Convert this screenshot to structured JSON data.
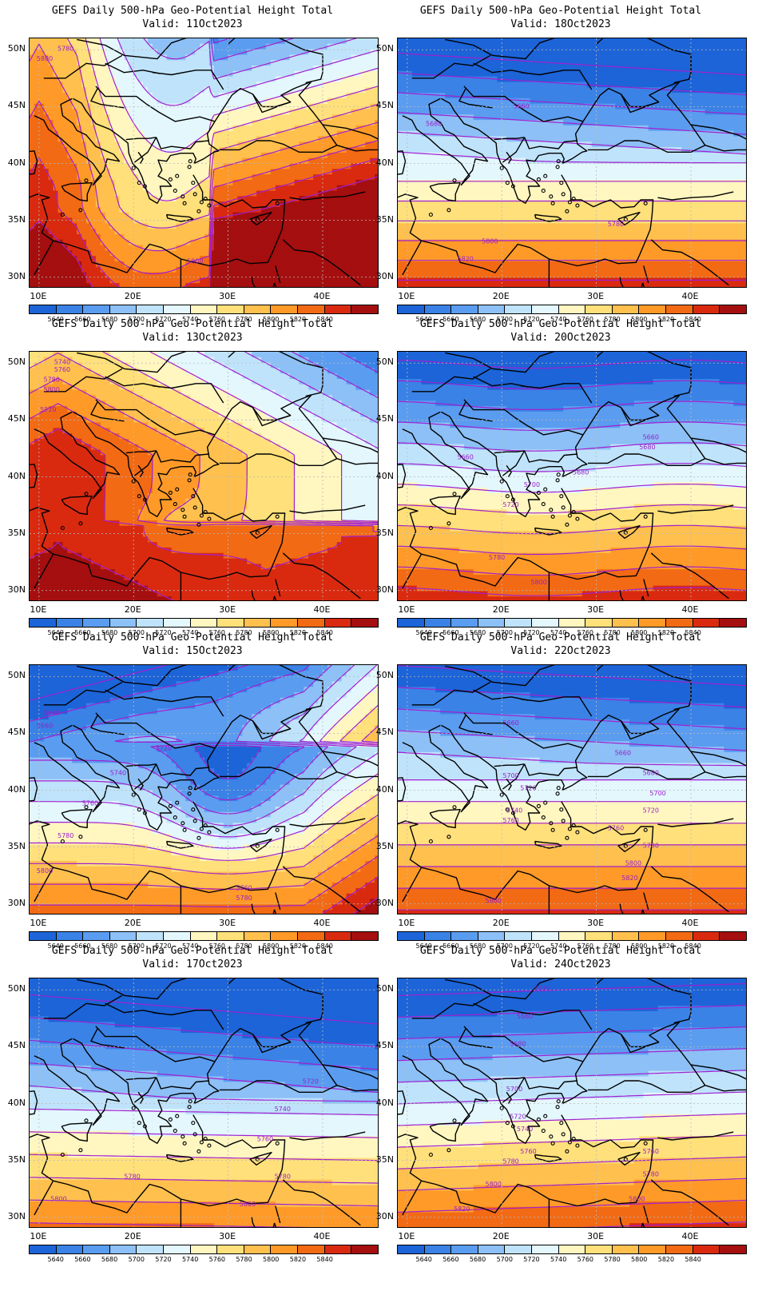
{
  "panels": [
    {
      "title": "GEFS Daily 500-hPa Geo-Potential Height Total",
      "valid": "Valid:  11Oct2023",
      "pattern": "ridge_west"
    },
    {
      "title": "GEFS Daily 500-hPa Geo-Potential Height Total",
      "valid": "Valid:  18Oct2023",
      "pattern": "zonal_low"
    },
    {
      "title": "GEFS Daily 500-hPa Geo-Potential Height Total",
      "valid": "Valid:  13Oct2023",
      "pattern": "ridge_strong"
    },
    {
      "title": "GEFS Daily 500-hPa Geo-Potential Height Total",
      "valid": "Valid:  20Oct2023",
      "pattern": "zonal_low2"
    },
    {
      "title": "GEFS Daily 500-hPa Geo-Potential Height Total",
      "valid": "Valid:  15Oct2023",
      "pattern": "trough_east"
    },
    {
      "title": "GEFS Daily 500-hPa Geo-Potential Height Total",
      "valid": "Valid:  22Oct2023",
      "pattern": "zonal_low3"
    },
    {
      "title": "GEFS Daily 500-hPa Geo-Potential Height Total",
      "valid": "Valid:  17Oct2023",
      "pattern": "zonal_cold"
    },
    {
      "title": "GEFS Daily 500-hPa Geo-Potential Height Total",
      "valid": "Valid:  24Oct2023",
      "pattern": "zonal_low4"
    }
  ],
  "axes": {
    "lat_labels": [
      "50N",
      "45N",
      "40N",
      "35N",
      "30N"
    ],
    "lon_labels": [
      "10E",
      "20E",
      "30E",
      "40E"
    ],
    "lat_range": [
      29,
      51
    ],
    "lon_range": [
      9,
      46
    ]
  },
  "colorbar": {
    "labels": [
      "5640",
      "5660",
      "5680",
      "5700",
      "5720",
      "5740",
      "5760",
      "5780",
      "5800",
      "5820",
      "5840"
    ],
    "colors": [
      "#1c64d8",
      "#3a82e6",
      "#5a9cf0",
      "#8cc0f6",
      "#bfe3fb",
      "#e3f7fd",
      "#fff6c0",
      "#ffe07a",
      "#ffc04e",
      "#ff9a28",
      "#f26a14",
      "#d92a10",
      "#a50f0f"
    ]
  },
  "contour_color": "#a21fd0",
  "coast_color": "#000000",
  "contour_labels": {
    "ridge_west": [
      "5780",
      "5800",
      "5800"
    ],
    "zonal_low": [
      "5660",
      "5680",
      "5780",
      "5800",
      "5820"
    ],
    "ridge_strong": [
      "5740",
      "5760",
      "5780",
      "5800",
      "5820"
    ],
    "zonal_low2": [
      "5660",
      "5680",
      "5660",
      "5680",
      "5700",
      "5720",
      "5780",
      "5800"
    ],
    "trough_east": [
      "5640",
      "5660",
      "5720",
      "5740",
      "5760",
      "5780",
      "5800",
      "5760",
      "5780"
    ],
    "zonal_low3": [
      "5660",
      "5660",
      "5680",
      "5700",
      "5720",
      "5700",
      "5720",
      "5740",
      "5760",
      "5760",
      "5780",
      "5800",
      "5820",
      "5800"
    ],
    "zonal_cold": [
      "5720",
      "5740",
      "5760",
      "5780",
      "5780",
      "5800",
      "5800"
    ],
    "zonal_low4": [
      "5640",
      "5660",
      "5680",
      "5700",
      "5720",
      "5740",
      "5760",
      "5760",
      "5780",
      "5780",
      "5800",
      "5800",
      "5820"
    ]
  }
}
